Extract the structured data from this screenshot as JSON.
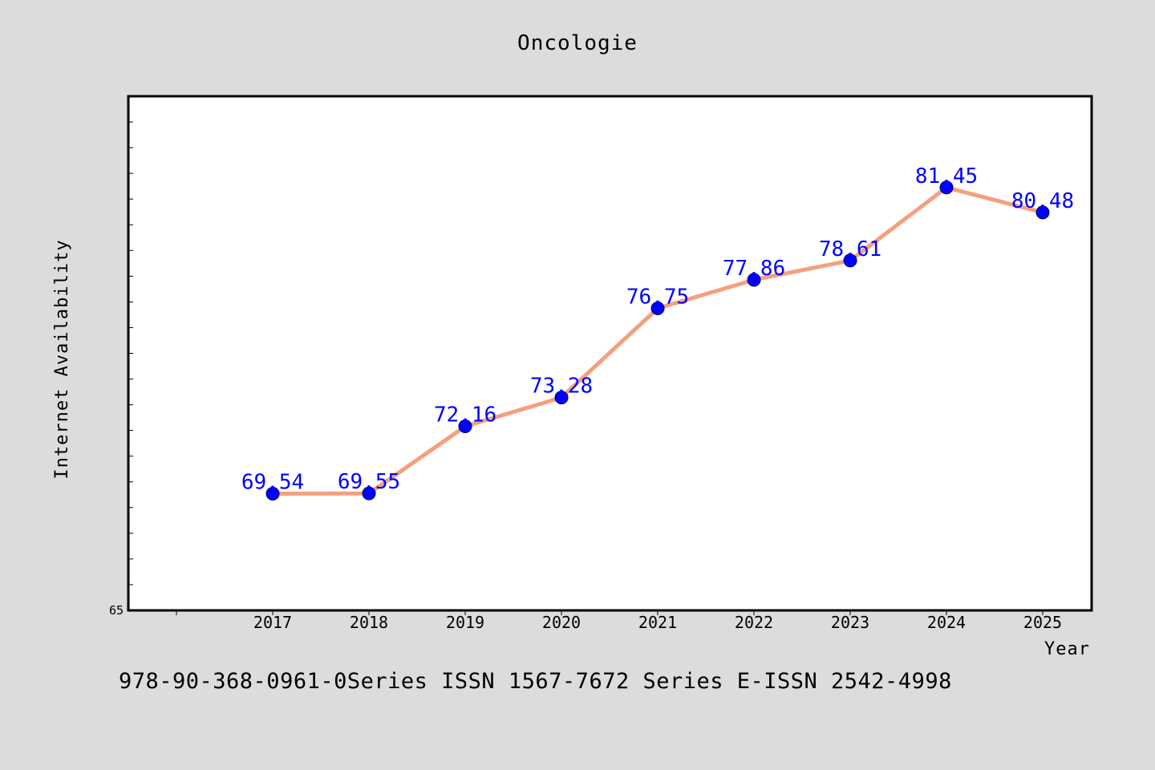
{
  "chart_data": {
    "type": "line",
    "title": "Oncologie",
    "xlabel": "Year",
    "ylabel": "Internet Availability",
    "categories": [
      "2017",
      "2018",
      "2019",
      "2020",
      "2021",
      "2022",
      "2023",
      "2024",
      "2025"
    ],
    "series": [
      {
        "values": [
          69.54,
          69.55,
          72.16,
          73.28,
          76.75,
          77.86,
          78.61,
          81.45,
          80.48
        ],
        "labels": [
          "69.54",
          "69.55",
          "72.16",
          "73.28",
          "76.75",
          "77.86",
          "78.61",
          "81.45",
          "80.48"
        ],
        "line_color": "#f4a07f",
        "marker_color": "#0000ff"
      }
    ],
    "ylim": [
      65,
      85
    ],
    "y_tick_labels": [
      "65"
    ],
    "grid": false,
    "legend": "none"
  },
  "footer_text": "978-90-368-0961-0Series ISSN 1567-7672 Series E-ISSN 2542-4998",
  "colors": {
    "background": "#dcdcdc",
    "plot_background": "#ffffff",
    "line": "#f4a07f",
    "marker": "#0000ff",
    "data_label": "#0000ff"
  }
}
